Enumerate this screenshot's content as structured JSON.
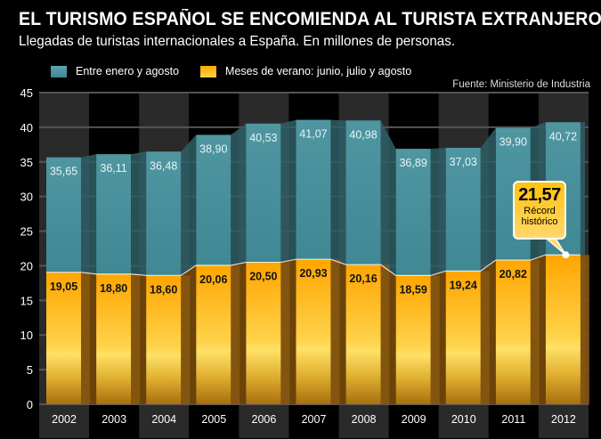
{
  "header": {
    "title": "EL TURISMO ESPAÑOL SE ENCOMIENDA AL TURISTA EXTRANJERO",
    "subtitle": "Llegadas de turistas internacionales a España. En millones de personas.",
    "source": "Fuente: Ministerio de Industria"
  },
  "legend": [
    {
      "label": "Entre enero y agosto",
      "color": "#4a939f"
    },
    {
      "label": "Meses de verano: junio, julio y agosto",
      "color": "#ffb300"
    }
  ],
  "callout": {
    "value": "21,57",
    "label_line1": "Récord",
    "label_line2": "histórico"
  },
  "chart_data": {
    "type": "bar",
    "title": "EL TURISMO ESPAÑOL SE ENCOMIENDA AL TURISTA EXTRANJERO",
    "subtitle": "Llegadas de turistas internacionales a España. En millones de personas.",
    "xlabel": "",
    "ylabel": "",
    "ylim": [
      0,
      45
    ],
    "yticks": [
      0,
      5,
      10,
      15,
      20,
      25,
      30,
      35,
      40,
      45
    ],
    "grid": true,
    "legend_position": "top-left",
    "categories": [
      "2002",
      "2003",
      "2004",
      "2005",
      "2006",
      "2007",
      "2008",
      "2009",
      "2010",
      "2011",
      "2012"
    ],
    "series": [
      {
        "name": "Entre enero y agosto",
        "color": "#4a939f",
        "values": [
          35.65,
          36.11,
          36.48,
          38.9,
          40.53,
          41.07,
          40.98,
          36.89,
          37.03,
          39.9,
          40.72
        ],
        "labels": [
          "35,65",
          "36,11",
          "36,48",
          "38,90",
          "40,53",
          "41,07",
          "40,98",
          "36,89",
          "37,03",
          "39,90",
          "40,72"
        ]
      },
      {
        "name": "Meses de verano: junio, julio y agosto",
        "color": "#ffb300",
        "values": [
          19.05,
          18.8,
          18.6,
          20.06,
          20.5,
          20.93,
          20.16,
          18.59,
          19.24,
          20.82,
          21.57
        ],
        "labels": [
          "19,05",
          "18,80",
          "18,60",
          "20,06",
          "20,50",
          "20,93",
          "20,16",
          "18,59",
          "19,24",
          "20,82",
          ""
        ]
      }
    ],
    "annotations": [
      {
        "category": "2012",
        "series": "Meses de verano: junio, julio y agosto",
        "text": "21,57 Récord histórico"
      }
    ],
    "source": "Fuente: Ministerio de Industria"
  }
}
